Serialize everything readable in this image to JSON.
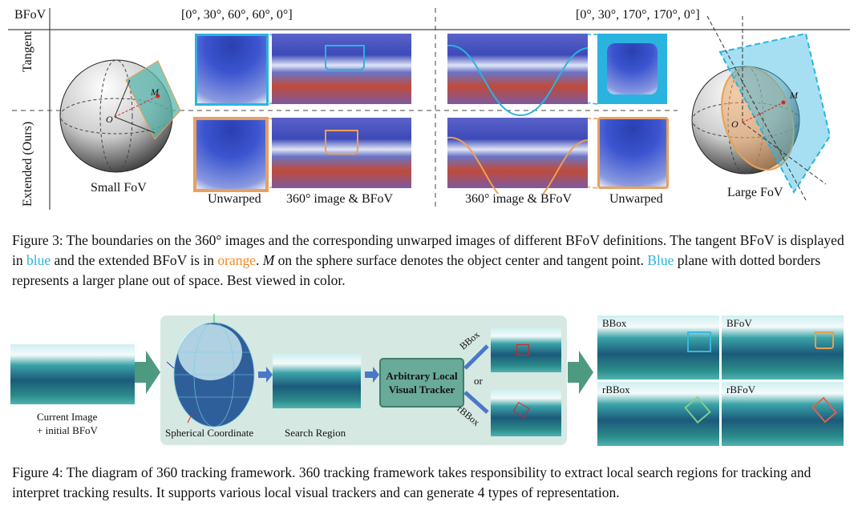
{
  "fig3": {
    "header_label": "BFoV",
    "small_params": "[0°, 30°, 60°, 60°, 0°]",
    "large_params": "[0°, 30°, 170°, 170°, 0°]",
    "row_tangent": "Tangent",
    "row_extended": "Extended (Ours)",
    "small_fov": "Small FoV",
    "large_fov": "Large FoV",
    "label_unwarped": "Unwarped",
    "label_360": "360° image & BFoV",
    "point_M": "M",
    "point_O": "O",
    "colors": {
      "tangent": "#2bb3e0",
      "extended": "#f0a050"
    },
    "caption": {
      "p1": "Figure 3: The boundaries on the 360° images and the corresponding unwarped images of different BFoV definitions. The tangent BFoV is displayed in ",
      "blue1": "blue",
      "p2": " and the extended BFoV is in ",
      "orange": "orange",
      "p3": ". ",
      "m": "M",
      "p4": " on the sphere surface denotes the object center and tangent point. ",
      "blue2": "Blue",
      "p5": " plane with dotted borders represents a larger plane out of space. Best viewed in color."
    }
  },
  "fig4": {
    "current_image": "Current Image",
    "initial_bfov": "+ initial BFoV",
    "spherical": "Spherical Coordinate",
    "search_region": "Search Region",
    "tracker": "Arbitrary Local Visual Tracker",
    "bbox_arrow": "BBox",
    "rbbox_arrow": "rBBox",
    "or": "or",
    "outputs": [
      "BBox",
      "BFoV",
      "rBBox",
      "rBFoV"
    ],
    "output_colors": [
      "#38b8e0",
      "#e8a050",
      "#7ed08a",
      "#e06050"
    ],
    "caption": "Figure 4: The diagram of 360 tracking framework. 360 tracking framework takes responsibility to extract local search regions for tracking and interpret tracking results. It supports various local visual trackers and can generate 4 types of representation."
  }
}
